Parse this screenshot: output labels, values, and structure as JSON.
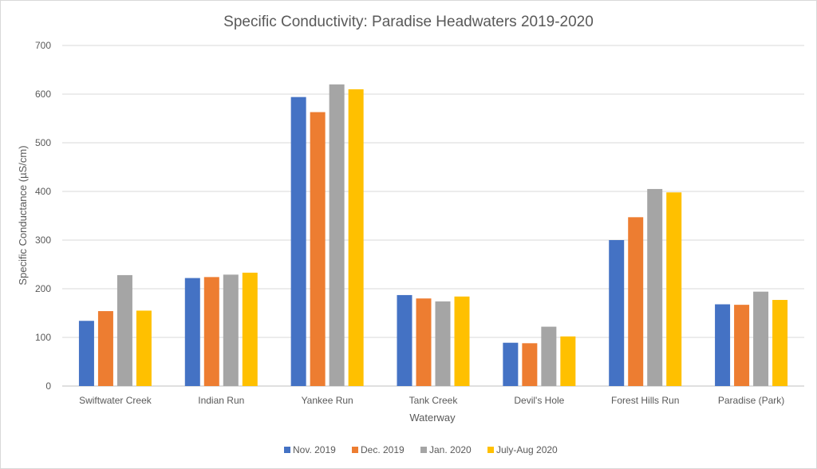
{
  "chart_data": {
    "type": "bar",
    "title": "Specific Conductivity: Paradise Headwaters 2019-2020",
    "xlabel": "Waterway",
    "ylabel": "Specific Conductance  (µS/cm)",
    "ylim": [
      0,
      700
    ],
    "yticks": [
      0,
      100,
      200,
      300,
      400,
      500,
      600,
      700
    ],
    "grid": true,
    "legend_position": "bottom",
    "categories": [
      "Swiftwater Creek",
      "Indian Run",
      "Yankee Run",
      "Tank Creek",
      "Devil's Hole",
      "Forest Hills Run",
      "Paradise (Park)"
    ],
    "series": [
      {
        "name": "Nov. 2019",
        "color": "#4472c4",
        "values": [
          134,
          222,
          594,
          187,
          89,
          300,
          168
        ]
      },
      {
        "name": "Dec. 2019",
        "color": "#ed7d31",
        "values": [
          154,
          224,
          563,
          180,
          88,
          347,
          167
        ]
      },
      {
        "name": "Jan. 2020",
        "color": "#a5a5a5",
        "values": [
          228,
          229,
          620,
          174,
          122,
          405,
          194
        ]
      },
      {
        "name": "July-Aug 2020",
        "color": "#ffc000",
        "values": [
          155,
          233,
          610,
          184,
          102,
          398,
          177
        ]
      }
    ]
  }
}
